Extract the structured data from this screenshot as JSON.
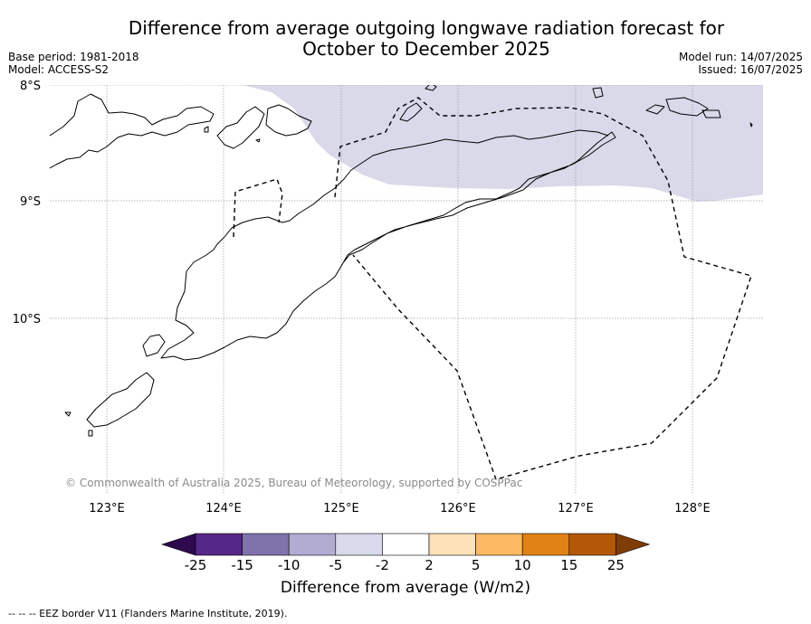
{
  "header": {
    "title_line1": "Difference from average outgoing longwave radiation forecast for",
    "title_line2": "October to December 2025",
    "base_period": "Base period: 1981-2018",
    "model": "Model: ACCESS-S2",
    "model_run": "Model run: 14/07/2025",
    "issued": "Issued: 16/07/2025"
  },
  "map": {
    "lat_labels": [
      "8°S",
      "9°S",
      "10°S"
    ],
    "lon_labels": [
      "123°E",
      "124°E",
      "125°E",
      "126°E",
      "127°E",
      "128°E"
    ],
    "copyright": "© Commonwealth of Australia 2025, Bureau of Meteorology, supported by COSPPac",
    "anomaly_color": "#d9d9ea",
    "anomaly_category": "-5 to -2"
  },
  "colorbar": {
    "ticks": [
      "-25",
      "-15",
      "-10",
      "-5",
      "-2",
      "2",
      "5",
      "10",
      "15",
      "25"
    ],
    "colors": [
      "#2d0a4e",
      "#542788",
      "#8073ac",
      "#b2abd2",
      "#d8daeb",
      "#ffffff",
      "#fee0b6",
      "#fdb863",
      "#e08214",
      "#b35806",
      "#7f3b08"
    ],
    "title": "Difference from average (W/m2)"
  },
  "footer": {
    "legend": "--  --  -- EEZ border V11 (Flanders Marine Institute, 2019)."
  }
}
